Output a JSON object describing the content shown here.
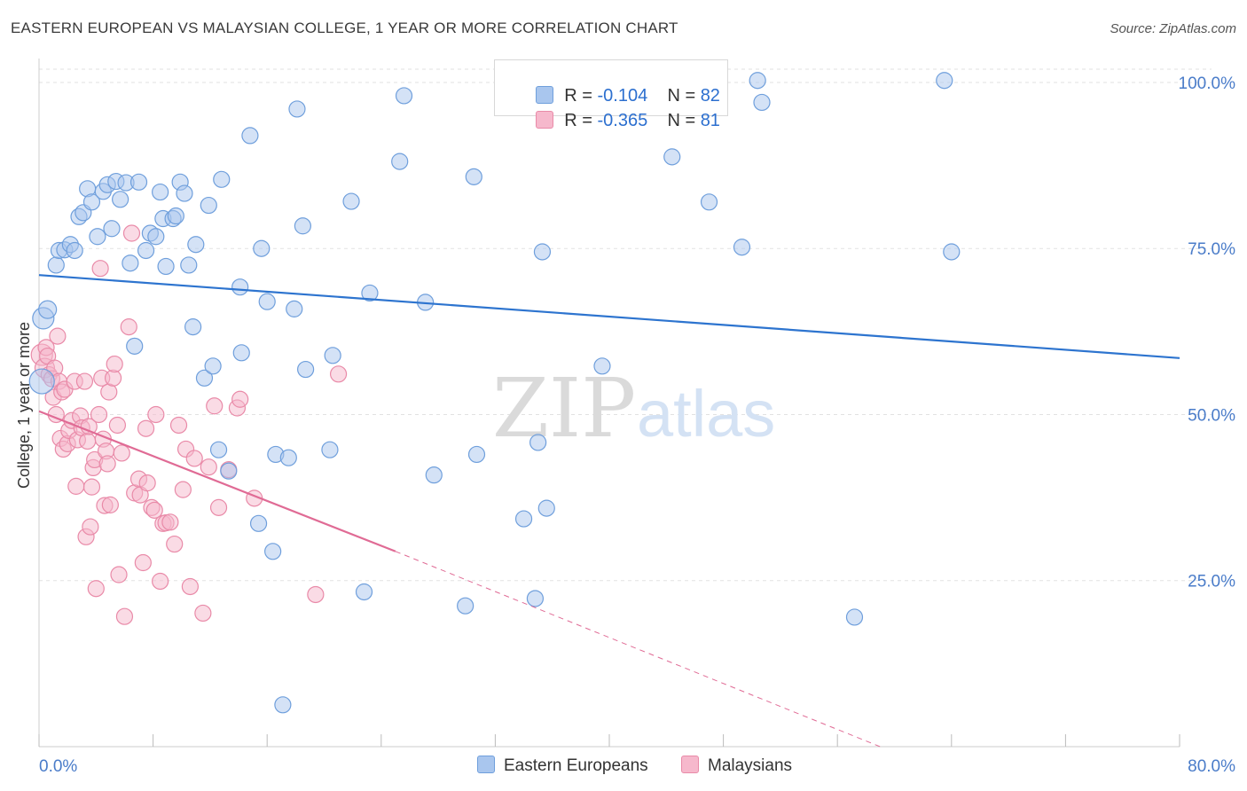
{
  "title": "EASTERN EUROPEAN VS MALAYSIAN COLLEGE, 1 YEAR OR MORE CORRELATION CHART",
  "source": "Source: ZipAtlas.com",
  "watermark": {
    "zip": "ZIP",
    "atlas": "atlas"
  },
  "legend": {
    "rows": [
      {
        "r_label": "R =",
        "r_value": "-0.104",
        "n_label": "N =",
        "n_value": "82"
      },
      {
        "r_label": "R =",
        "r_value": "-0.365",
        "n_label": "N =",
        "n_value": "81"
      }
    ]
  },
  "bottom_legend": {
    "series1": "Eastern Europeans",
    "series2": "Malaysians"
  },
  "colors": {
    "blue_fill": "#a9c6ee",
    "blue_stroke": "#6f9fdc",
    "blue_line": "#2d74cf",
    "pink_fill": "#f6b8cc",
    "pink_stroke": "#e98aa8",
    "pink_line": "#e06b95",
    "grid": "#e2e2e2",
    "tick_text": "#4a7cc9"
  },
  "chart_data": {
    "type": "scatter",
    "title": "EASTERN EUROPEAN VS MALAYSIAN COLLEGE, 1 YEAR OR MORE CORRELATION CHART",
    "xlabel": "",
    "ylabel": "College, 1 year or more",
    "xlim": [
      0,
      80
    ],
    "ylim": [
      0,
      102
    ],
    "x_tick_labels": [
      "0.0%",
      "80.0%"
    ],
    "y_tick_labels": [
      {
        "value": 25,
        "label": "25.0%"
      },
      {
        "value": 50,
        "label": "50.0%"
      },
      {
        "value": 75,
        "label": "75.0%"
      },
      {
        "value": 100,
        "label": "100.0%"
      }
    ],
    "grid": true,
    "legend_position": "top-center",
    "series": [
      {
        "name": "Eastern Europeans",
        "color": "#a9c6ee",
        "r": -0.104,
        "n": 82,
        "trend": {
          "x": [
            0,
            80
          ],
          "y": [
            71.0,
            58.5
          ],
          "dashed_to": null
        },
        "points": [
          [
            0.2,
            55.0,
            14
          ],
          [
            0.3,
            64.5,
            12
          ],
          [
            0.6,
            65.8,
            10
          ],
          [
            1.2,
            72.5,
            9
          ],
          [
            1.4,
            74.7,
            9
          ],
          [
            1.8,
            74.8,
            9
          ],
          [
            2.2,
            75.6,
            9
          ],
          [
            2.5,
            74.7,
            9
          ],
          [
            2.8,
            79.8,
            9
          ],
          [
            3.1,
            80.4,
            9
          ],
          [
            3.4,
            84.0,
            9
          ],
          [
            3.7,
            82.0,
            9
          ],
          [
            4.1,
            76.8,
            9
          ],
          [
            4.5,
            83.6,
            9
          ],
          [
            4.8,
            84.6,
            9
          ],
          [
            5.1,
            78.0,
            9
          ],
          [
            5.4,
            85.1,
            9
          ],
          [
            5.7,
            82.4,
            9
          ],
          [
            6.1,
            84.9,
            9
          ],
          [
            6.4,
            72.8,
            9
          ],
          [
            6.7,
            60.3,
            9
          ],
          [
            7.0,
            85.0,
            9
          ],
          [
            7.5,
            74.7,
            9
          ],
          [
            7.8,
            77.3,
            9
          ],
          [
            8.2,
            76.8,
            9
          ],
          [
            8.5,
            83.5,
            9
          ],
          [
            8.7,
            79.5,
            9
          ],
          [
            8.9,
            72.3,
            9
          ],
          [
            9.4,
            79.5,
            9
          ],
          [
            9.6,
            79.9,
            9
          ],
          [
            9.9,
            85.0,
            9
          ],
          [
            10.2,
            83.3,
            9
          ],
          [
            10.5,
            72.5,
            9
          ],
          [
            10.8,
            63.2,
            9
          ],
          [
            11.0,
            75.6,
            9
          ],
          [
            11.6,
            55.5,
            9
          ],
          [
            11.9,
            81.5,
            9
          ],
          [
            12.2,
            57.3,
            9
          ],
          [
            12.6,
            44.7,
            9
          ],
          [
            12.8,
            85.4,
            9
          ],
          [
            13.3,
            41.5,
            9
          ],
          [
            14.1,
            69.2,
            9
          ],
          [
            14.2,
            59.3,
            9
          ],
          [
            14.8,
            92.0,
            9
          ],
          [
            15.4,
            33.6,
            9
          ],
          [
            15.6,
            75.0,
            9
          ],
          [
            16.0,
            67.0,
            9
          ],
          [
            16.4,
            29.4,
            9
          ],
          [
            16.6,
            44.0,
            9
          ],
          [
            17.1,
            6.3,
            9
          ],
          [
            17.5,
            43.5,
            9
          ],
          [
            17.9,
            65.9,
            9
          ],
          [
            18.1,
            96.0,
            9
          ],
          [
            18.5,
            78.4,
            9
          ],
          [
            18.7,
            56.8,
            9
          ],
          [
            20.4,
            44.7,
            9
          ],
          [
            20.6,
            58.9,
            9
          ],
          [
            21.9,
            82.1,
            9
          ],
          [
            22.8,
            23.3,
            9
          ],
          [
            23.2,
            68.3,
            9
          ],
          [
            25.3,
            88.1,
            9
          ],
          [
            25.6,
            98.0,
            9
          ],
          [
            27.1,
            66.9,
            9
          ],
          [
            27.7,
            40.9,
            9
          ],
          [
            29.9,
            21.2,
            9
          ],
          [
            30.5,
            85.8,
            9
          ],
          [
            30.7,
            44.0,
            9
          ],
          [
            34.0,
            34.3,
            9
          ],
          [
            34.8,
            22.3,
            9
          ],
          [
            35.0,
            45.8,
            9
          ],
          [
            35.3,
            74.5,
            9
          ],
          [
            35.6,
            35.9,
            9
          ],
          [
            39.5,
            57.3,
            9
          ],
          [
            44.4,
            88.8,
            9
          ],
          [
            47.0,
            82.0,
            9
          ],
          [
            49.3,
            75.2,
            9
          ],
          [
            50.4,
            100.3,
            9
          ],
          [
            50.7,
            97.0,
            9
          ],
          [
            57.2,
            19.5,
            9
          ],
          [
            63.5,
            100.3,
            9
          ],
          [
            64.0,
            74.5,
            9
          ]
        ]
      },
      {
        "name": "Malaysians",
        "color": "#f6b8cc",
        "r": -0.365,
        "n": 81,
        "trend": {
          "x": [
            0,
            25
          ],
          "y": [
            50.5,
            29.4
          ],
          "dashed_to": [
            59,
            0
          ]
        },
        "points": [
          [
            0.2,
            59.0,
            12
          ],
          [
            0.4,
            57.0,
            11
          ],
          [
            0.5,
            60.1,
            9
          ],
          [
            0.6,
            58.8,
            9
          ],
          [
            0.7,
            56.0,
            9
          ],
          [
            0.9,
            55.4,
            9
          ],
          [
            1.0,
            52.6,
            9
          ],
          [
            1.1,
            57.0,
            9
          ],
          [
            1.2,
            50.0,
            9
          ],
          [
            1.3,
            61.8,
            9
          ],
          [
            1.4,
            55.0,
            9
          ],
          [
            1.5,
            46.4,
            9
          ],
          [
            1.6,
            53.4,
            9
          ],
          [
            1.7,
            44.8,
            9
          ],
          [
            1.8,
            53.8,
            9
          ],
          [
            2.0,
            45.6,
            9
          ],
          [
            2.1,
            47.6,
            9
          ],
          [
            2.3,
            49.1,
            9
          ],
          [
            2.5,
            55.0,
            9
          ],
          [
            2.6,
            39.2,
            9
          ],
          [
            2.7,
            46.2,
            9
          ],
          [
            2.9,
            49.8,
            9
          ],
          [
            3.0,
            48.0,
            9
          ],
          [
            3.2,
            55.0,
            9
          ],
          [
            3.3,
            31.6,
            9
          ],
          [
            3.4,
            46.0,
            9
          ],
          [
            3.5,
            48.2,
            9
          ],
          [
            3.6,
            33.1,
            9
          ],
          [
            3.7,
            39.1,
            9
          ],
          [
            3.8,
            42.0,
            9
          ],
          [
            3.9,
            43.2,
            9
          ],
          [
            4.0,
            23.8,
            9
          ],
          [
            4.2,
            50.0,
            9
          ],
          [
            4.3,
            72.0,
            9
          ],
          [
            4.4,
            55.5,
            9
          ],
          [
            4.5,
            46.3,
            9
          ],
          [
            4.6,
            36.3,
            9
          ],
          [
            4.7,
            44.5,
            9
          ],
          [
            4.8,
            42.6,
            9
          ],
          [
            4.9,
            53.4,
            9
          ],
          [
            5.0,
            36.4,
            9
          ],
          [
            5.2,
            55.5,
            9
          ],
          [
            5.3,
            57.6,
            9
          ],
          [
            5.5,
            48.4,
            9
          ],
          [
            5.6,
            25.9,
            9
          ],
          [
            5.8,
            44.2,
            9
          ],
          [
            6.0,
            19.6,
            9
          ],
          [
            6.3,
            63.2,
            9
          ],
          [
            6.5,
            77.3,
            9
          ],
          [
            6.7,
            38.2,
            9
          ],
          [
            7.0,
            40.3,
            9
          ],
          [
            7.1,
            37.9,
            9
          ],
          [
            7.3,
            27.7,
            9
          ],
          [
            7.5,
            47.9,
            9
          ],
          [
            7.6,
            39.7,
            9
          ],
          [
            7.9,
            36.0,
            9
          ],
          [
            8.1,
            35.6,
            9
          ],
          [
            8.2,
            50.0,
            9
          ],
          [
            8.5,
            24.9,
            9
          ],
          [
            8.7,
            33.6,
            9
          ],
          [
            8.9,
            33.7,
            9
          ],
          [
            9.2,
            33.8,
            9
          ],
          [
            9.5,
            30.5,
            9
          ],
          [
            9.8,
            48.4,
            9
          ],
          [
            10.1,
            38.7,
            9
          ],
          [
            10.3,
            44.8,
            9
          ],
          [
            10.6,
            24.1,
            9
          ],
          [
            10.9,
            43.4,
            9
          ],
          [
            11.5,
            20.1,
            9
          ],
          [
            11.9,
            42.1,
            9
          ],
          [
            12.3,
            51.3,
            9
          ],
          [
            12.6,
            36.0,
            9
          ],
          [
            13.3,
            41.7,
            9
          ],
          [
            13.9,
            51.0,
            9
          ],
          [
            14.1,
            52.3,
            9
          ],
          [
            15.1,
            37.4,
            9
          ],
          [
            19.4,
            22.9,
            9
          ],
          [
            21.0,
            56.1,
            9
          ]
        ]
      }
    ]
  }
}
